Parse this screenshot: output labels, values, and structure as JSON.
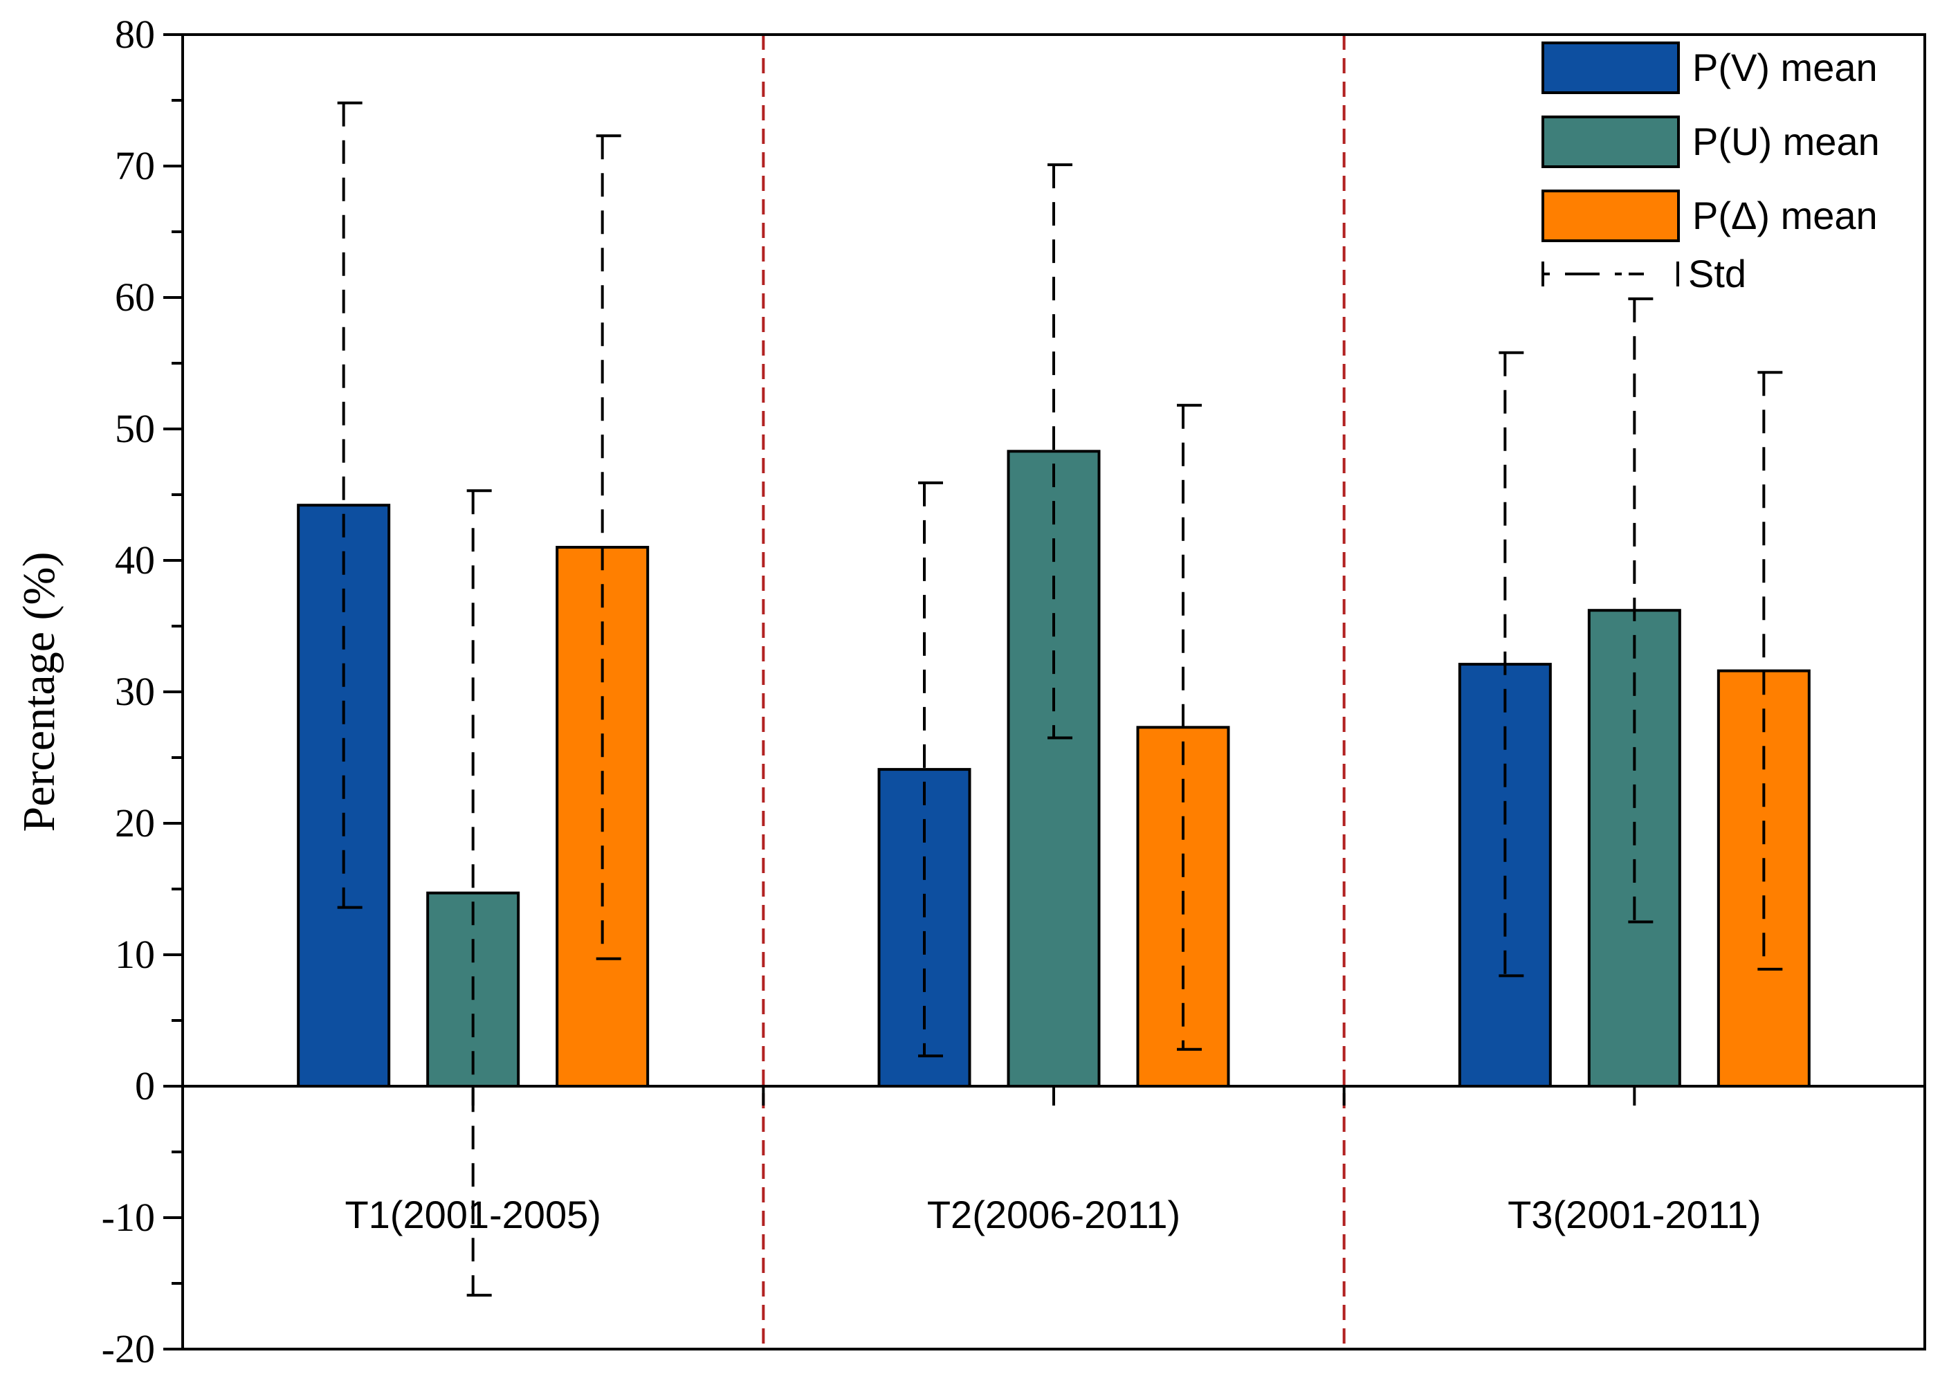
{
  "chart_data": {
    "type": "bar",
    "title": "",
    "xlabel": "",
    "ylabel": "Percentage (%)",
    "ylim": [
      -20,
      80
    ],
    "yticks": [
      -20,
      -10,
      0,
      10,
      20,
      30,
      40,
      50,
      60,
      70,
      80
    ],
    "grid": false,
    "legend_position": "top-right",
    "categories": [
      "T1(2001-2005)",
      "T2(2006-2011)",
      "T3(2001-2011)"
    ],
    "series": [
      {
        "name": "P(V) mean",
        "color": "#0d4fa0",
        "values": [
          44.2,
          24.1,
          32.1
        ],
        "std": [
          30.6,
          21.8,
          23.7
        ]
      },
      {
        "name": "P(U) mean",
        "color": "#3e7f7a",
        "values": [
          14.7,
          48.3,
          36.2
        ],
        "std": [
          30.6,
          21.8,
          23.7
        ]
      },
      {
        "name": "P(Δ) mean",
        "color": "#ff7f00",
        "values": [
          41.0,
          27.3,
          31.6
        ],
        "std": [
          31.3,
          24.5,
          22.7
        ]
      }
    ],
    "error_legend_label": "Std",
    "separator_color": "#b22222"
  }
}
